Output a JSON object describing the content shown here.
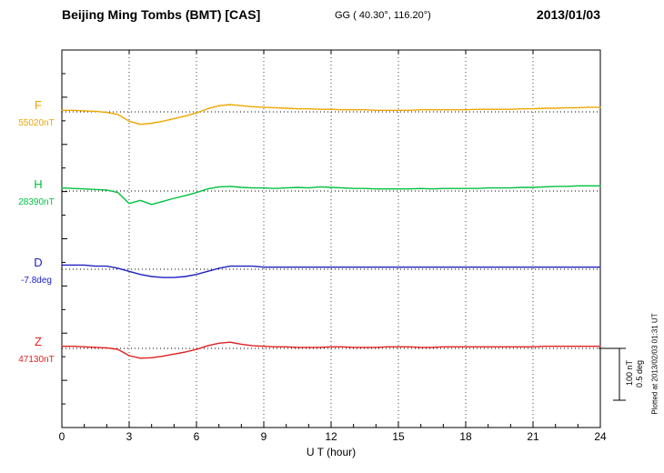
{
  "header": {
    "station_title": "Beijing Ming Tombs (BMT)  [CAS]",
    "coordinates": "GG ( 40.30°, 116.20°)",
    "date": "2013/01/03"
  },
  "axis": {
    "xlabel": "U T (hour)",
    "x_ticks": [
      "0",
      "3",
      "6",
      "9",
      "12",
      "15",
      "18",
      "21",
      "24"
    ]
  },
  "scale_bar": {
    "label_nt": "100 nT",
    "label_deg": "0.5 deg"
  },
  "footer_note": "Plotted at 2013/02/03 01:31 UT",
  "chart_data": {
    "type": "line",
    "title": "Beijing Ming Tombs (BMT) [CAS] magnetogram",
    "date": "2013/01/03",
    "xlabel": "U T (hour)",
    "x_range": [
      0,
      24
    ],
    "x_tick_values": [
      0,
      3,
      6,
      9,
      12,
      15,
      18,
      21,
      24
    ],
    "x_start": 0,
    "x_step": 0.5,
    "grid": "vertical dotted gridlines every 3 hours; dotted horizontal baseline per component",
    "legend_position": "left margin, one colored label per trace",
    "offset_range": [
      -30,
      15
    ],
    "scale": {
      "nT_per_bar": 100,
      "deg_per_bar": 0.5
    },
    "series": [
      {
        "name": "F",
        "color": "#f0a500",
        "baseline_label": "55020nT",
        "baseline_value": 55020,
        "unit": "nT",
        "offsets": [
          3,
          3,
          2,
          1,
          -1,
          -5,
          -18,
          -24,
          -22,
          -18,
          -13,
          -8,
          -2,
          6,
          12,
          14,
          12,
          10,
          9,
          8,
          7,
          6,
          6,
          5,
          5,
          4,
          4,
          4,
          3,
          3,
          3,
          3,
          4,
          4,
          4,
          4,
          4,
          5,
          5,
          5,
          5,
          6,
          6,
          7,
          7,
          8,
          8,
          9,
          9
        ]
      },
      {
        "name": "H",
        "color": "#00c040",
        "baseline_label": "28390nT",
        "baseline_value": 28390,
        "unit": "nT",
        "offsets": [
          6,
          5,
          4,
          3,
          2,
          -3,
          -24,
          -18,
          -26,
          -20,
          -14,
          -9,
          -3,
          4,
          8,
          9,
          7,
          6,
          6,
          5,
          6,
          7,
          6,
          8,
          7,
          6,
          5,
          5,
          4,
          4,
          4,
          4,
          5,
          4,
          5,
          5,
          5,
          5,
          6,
          6,
          6,
          7,
          7,
          8,
          9,
          9,
          10,
          10,
          10
        ]
      },
      {
        "name": "D",
        "color": "#2020c0",
        "baseline_label": "-7.8deg",
        "baseline_value": -7.8,
        "unit": "deg",
        "offsets": [
          0.04,
          0.04,
          0.04,
          0.03,
          0.03,
          0.01,
          -0.02,
          -0.05,
          -0.07,
          -0.08,
          -0.08,
          -0.07,
          -0.05,
          -0.02,
          0.01,
          0.03,
          0.03,
          0.03,
          0.02,
          0.02,
          0.02,
          0.02,
          0.02,
          0.02,
          0.02,
          0.02,
          0.02,
          0.02,
          0.02,
          0.02,
          0.02,
          0.02,
          0.02,
          0.02,
          0.02,
          0.02,
          0.02,
          0.02,
          0.02,
          0.02,
          0.02,
          0.02,
          0.02,
          0.02,
          0.02,
          0.02,
          0.02,
          0.02,
          0.02
        ]
      },
      {
        "name": "Z",
        "color": "#e02020",
        "baseline_label": "47130nT",
        "baseline_value": 47130,
        "unit": "nT",
        "offsets": [
          4,
          4,
          3,
          2,
          1,
          -2,
          -14,
          -19,
          -18,
          -15,
          -11,
          -7,
          -2,
          5,
          10,
          12,
          8,
          5,
          4,
          3,
          3,
          2,
          2,
          2,
          3,
          3,
          2,
          2,
          2,
          3,
          3,
          3,
          2,
          2,
          3,
          3,
          3,
          3,
          3,
          3,
          3,
          3,
          3,
          4,
          4,
          4,
          4,
          4,
          4
        ]
      }
    ]
  }
}
